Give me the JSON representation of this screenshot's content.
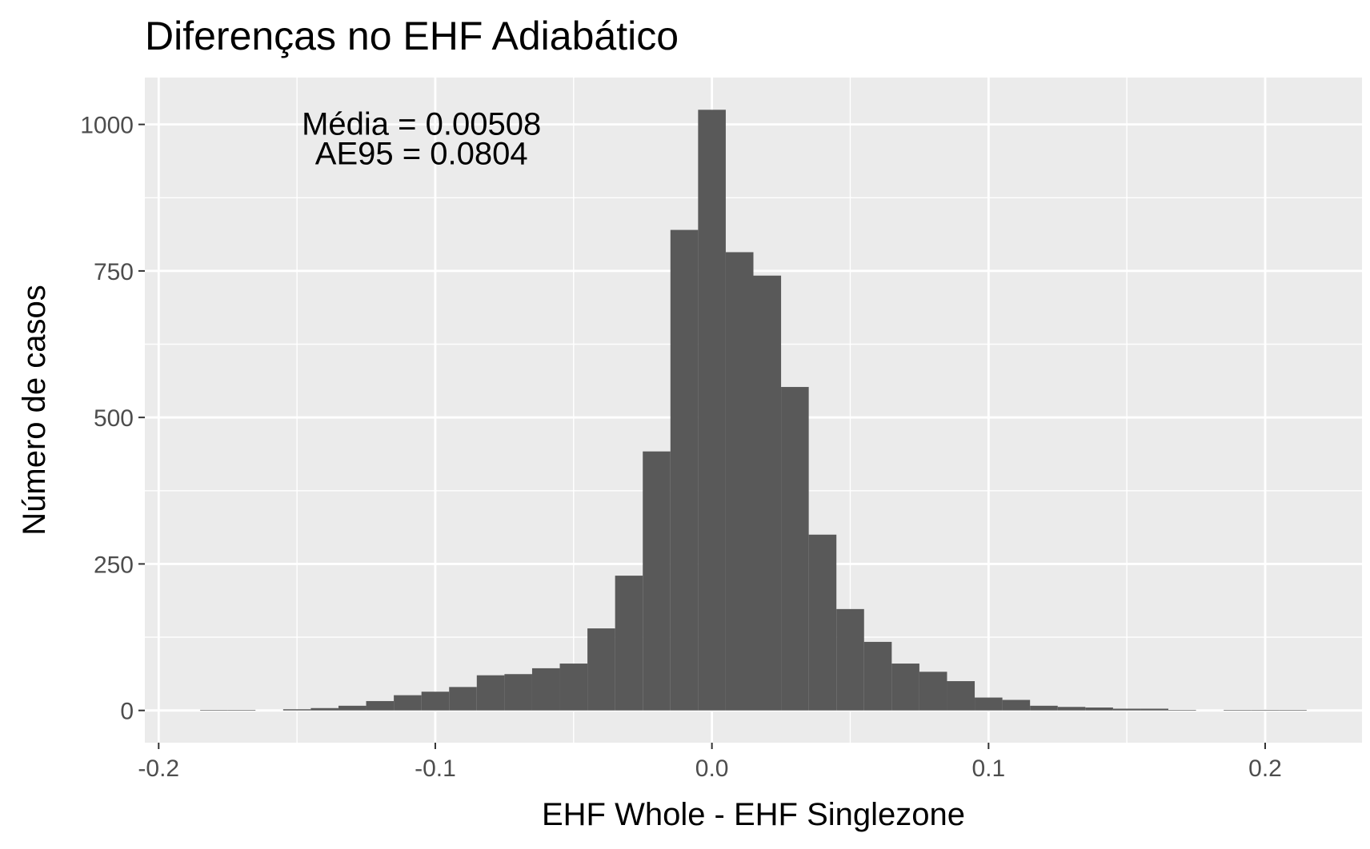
{
  "chart_data": {
    "type": "bar",
    "title": "Diferenças no EHF Adiabático",
    "xlabel": "EHF Whole - EHF Singlezone",
    "ylabel": "Número de casos",
    "xlim": [
      -0.205,
      0.235
    ],
    "ylim": [
      -55,
      1080
    ],
    "x_ticks": [
      -0.2,
      -0.1,
      0.0,
      0.1,
      0.2
    ],
    "x_tick_labels": [
      "-0.2",
      "-0.1",
      "0.0",
      "0.1",
      "0.2"
    ],
    "y_ticks": [
      0,
      250,
      500,
      750,
      1000
    ],
    "y_tick_labels": [
      "0",
      "250",
      "500",
      "750",
      "1000"
    ],
    "bin_width": 0.01,
    "bin_centers": [
      -0.18,
      -0.17,
      -0.16,
      -0.15,
      -0.14,
      -0.13,
      -0.12,
      -0.11,
      -0.1,
      -0.09,
      -0.08,
      -0.07,
      -0.06,
      -0.05,
      -0.04,
      -0.03,
      -0.02,
      -0.01,
      0.0,
      0.01,
      0.02,
      0.03,
      0.04,
      0.05,
      0.06,
      0.07,
      0.08,
      0.09,
      0.1,
      0.11,
      0.12,
      0.13,
      0.14,
      0.15,
      0.16,
      0.17,
      0.18,
      0.19,
      0.2,
      0.21
    ],
    "counts": [
      1,
      1,
      0,
      2,
      4,
      8,
      16,
      26,
      32,
      40,
      60,
      62,
      72,
      80,
      140,
      230,
      442,
      820,
      1025,
      782,
      742,
      552,
      300,
      173,
      117,
      80,
      66,
      50,
      22,
      18,
      8,
      6,
      5,
      3,
      3,
      1,
      0,
      1,
      1,
      1
    ],
    "bar_color": "#595959",
    "panel_color": "#ebebeb",
    "grid": true,
    "annotations": [
      "Média = 0.00508",
      "AE95 = 0.0804"
    ]
  }
}
